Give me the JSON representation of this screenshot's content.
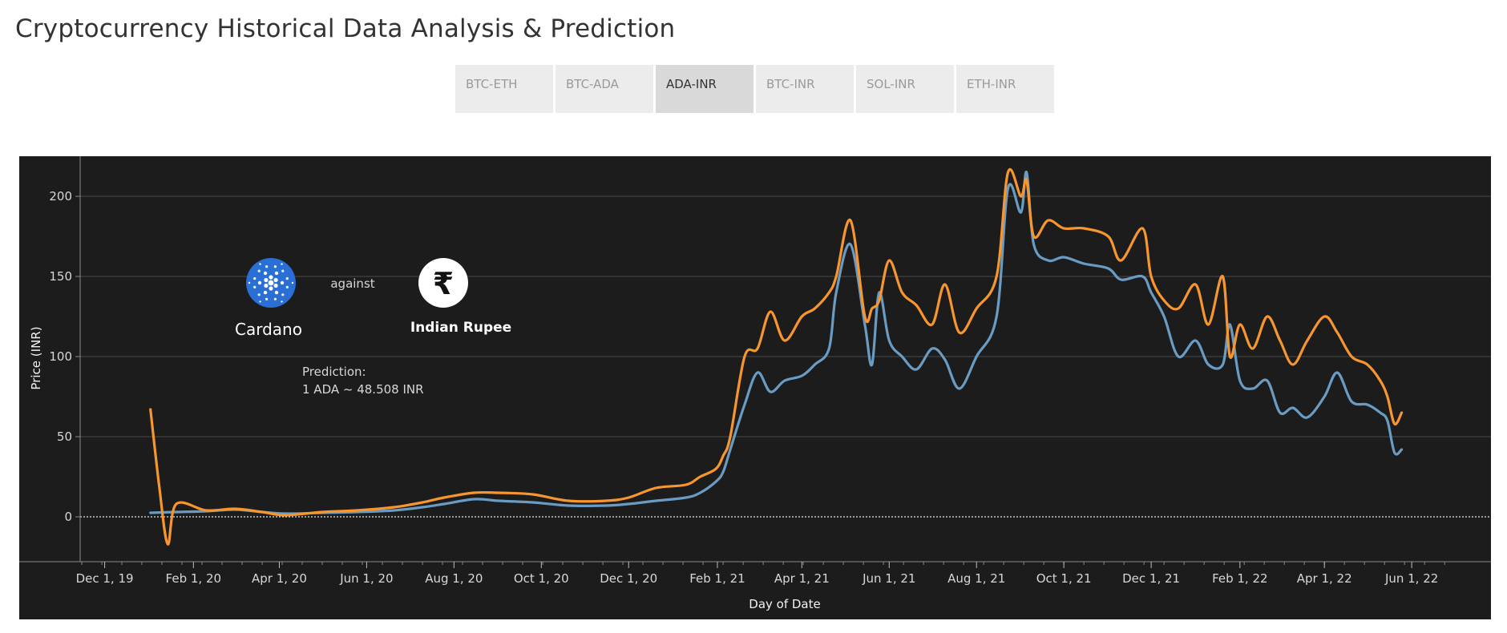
{
  "page": {
    "title": "Cryptocurrency Historical Data Analysis & Prediction"
  },
  "tabs": [
    {
      "label": "BTC-ETH",
      "active": false
    },
    {
      "label": "BTC-ADA",
      "active": false
    },
    {
      "label": "ADA-INR",
      "active": true
    },
    {
      "label": "BTC-INR",
      "active": false
    },
    {
      "label": "SOL-INR",
      "active": false
    },
    {
      "label": "ETH-INR",
      "active": false
    }
  ],
  "legend_area": {
    "coin_name": "Cardano",
    "coin_icon": "cardano-logo-icon",
    "against_text": "against",
    "currency_name": "Indian Rupee",
    "currency_icon": "rupee-icon"
  },
  "prediction": {
    "label": "Prediction:",
    "text": "1 ADA ~ 48.508 INR"
  },
  "colors": {
    "background": "#1c1c1c",
    "actual_series": "#6a9bc3",
    "predicted_series": "#f7962e",
    "coin_blue": "#2a6fd6"
  },
  "chart_data": {
    "type": "line",
    "xlabel": "Day of Date",
    "ylabel": "Price (INR)",
    "x_type": "date",
    "xlim": [
      "2019-11-15",
      "2022-06-25"
    ],
    "ylim": [
      -28,
      225
    ],
    "grid": true,
    "x_ticks": [
      {
        "date": "2019-12-01",
        "label": "Dec 1, 19"
      },
      {
        "date": "2020-02-01",
        "label": "Feb 1, 20"
      },
      {
        "date": "2020-04-01",
        "label": "Apr 1, 20"
      },
      {
        "date": "2020-06-01",
        "label": "Jun 1, 20"
      },
      {
        "date": "2020-08-01",
        "label": "Aug 1, 20"
      },
      {
        "date": "2020-10-01",
        "label": "Oct 1, 20"
      },
      {
        "date": "2020-12-01",
        "label": "Dec 1, 20"
      },
      {
        "date": "2021-02-01",
        "label": "Feb 1, 21"
      },
      {
        "date": "2021-04-01",
        "label": "Apr 1, 21"
      },
      {
        "date": "2021-06-01",
        "label": "Jun 1, 21"
      },
      {
        "date": "2021-08-01",
        "label": "Aug 1, 21"
      },
      {
        "date": "2021-10-01",
        "label": "Oct 1, 21"
      },
      {
        "date": "2021-12-01",
        "label": "Dec 1, 21"
      },
      {
        "date": "2022-02-01",
        "label": "Feb 1, 22"
      },
      {
        "date": "2022-04-01",
        "label": "Apr 1, 22"
      },
      {
        "date": "2022-06-01",
        "label": "Jun 1, 22"
      }
    ],
    "y_ticks": [
      0,
      50,
      100,
      150,
      200
    ],
    "series": [
      {
        "role": "actual",
        "x": [
          "2020-01-02",
          "2020-01-20",
          "2020-02-10",
          "2020-03-01",
          "2020-03-20",
          "2020-04-05",
          "2020-05-01",
          "2020-05-25",
          "2020-06-20",
          "2020-07-10",
          "2020-07-25",
          "2020-08-15",
          "2020-09-01",
          "2020-09-25",
          "2020-10-20",
          "2020-11-15",
          "2020-12-01",
          "2020-12-20",
          "2021-01-10",
          "2021-01-20",
          "2021-01-31",
          "2021-02-05",
          "2021-02-10",
          "2021-02-20",
          "2021-03-01",
          "2021-03-10",
          "2021-03-20",
          "2021-04-01",
          "2021-04-10",
          "2021-04-20",
          "2021-04-25",
          "2021-05-05",
          "2021-05-15",
          "2021-05-20",
          "2021-05-25",
          "2021-06-01",
          "2021-06-10",
          "2021-06-20",
          "2021-07-01",
          "2021-07-10",
          "2021-07-20",
          "2021-08-01",
          "2021-08-15",
          "2021-08-23",
          "2021-09-01",
          "2021-09-05",
          "2021-09-10",
          "2021-09-20",
          "2021-10-01",
          "2021-10-15",
          "2021-11-01",
          "2021-11-10",
          "2021-11-25",
          "2021-12-01",
          "2021-12-10",
          "2021-12-20",
          "2022-01-01",
          "2022-01-10",
          "2022-01-20",
          "2022-01-25",
          "2022-02-01",
          "2022-02-10",
          "2022-02-20",
          "2022-03-01",
          "2022-03-10",
          "2022-03-20",
          "2022-04-01",
          "2022-04-10",
          "2022-04-20",
          "2022-05-01",
          "2022-05-10",
          "2022-05-15",
          "2022-05-20",
          "2022-05-25"
        ],
        "values": [
          2.5,
          3,
          3.5,
          4.5,
          3,
          2,
          2.5,
          3,
          4,
          6,
          8,
          11,
          10,
          9,
          7,
          7,
          8,
          10,
          12,
          15,
          22,
          28,
          42,
          70,
          90,
          78,
          85,
          88,
          95,
          105,
          140,
          170,
          120,
          95,
          140,
          110,
          100,
          92,
          105,
          98,
          80,
          100,
          125,
          205,
          190,
          215,
          170,
          160,
          162,
          158,
          155,
          148,
          150,
          140,
          125,
          100,
          110,
          95,
          95,
          120,
          85,
          80,
          85,
          65,
          68,
          62,
          75,
          90,
          72,
          70,
          65,
          60,
          40,
          42
        ]
      },
      {
        "role": "predicted",
        "x": [
          "2020-01-02",
          "2020-01-08",
          "2020-01-14",
          "2020-01-20",
          "2020-02-10",
          "2020-03-01",
          "2020-03-20",
          "2020-04-05",
          "2020-05-01",
          "2020-05-25",
          "2020-06-20",
          "2020-07-10",
          "2020-07-25",
          "2020-08-15",
          "2020-09-01",
          "2020-09-25",
          "2020-10-20",
          "2020-11-15",
          "2020-12-01",
          "2020-12-20",
          "2021-01-10",
          "2021-01-20",
          "2021-01-31",
          "2021-02-05",
          "2021-02-10",
          "2021-02-20",
          "2021-03-01",
          "2021-03-10",
          "2021-03-20",
          "2021-04-01",
          "2021-04-10",
          "2021-04-20",
          "2021-04-25",
          "2021-05-05",
          "2021-05-15",
          "2021-05-20",
          "2021-05-25",
          "2021-06-01",
          "2021-06-10",
          "2021-06-20",
          "2021-07-01",
          "2021-07-10",
          "2021-07-20",
          "2021-08-01",
          "2021-08-15",
          "2021-08-23",
          "2021-09-01",
          "2021-09-05",
          "2021-09-10",
          "2021-09-20",
          "2021-10-01",
          "2021-10-15",
          "2021-11-01",
          "2021-11-10",
          "2021-11-25",
          "2021-12-01",
          "2021-12-10",
          "2021-12-20",
          "2022-01-01",
          "2022-01-10",
          "2022-01-20",
          "2022-01-25",
          "2022-02-01",
          "2022-02-10",
          "2022-02-20",
          "2022-03-01",
          "2022-03-10",
          "2022-03-20",
          "2022-04-01",
          "2022-04-10",
          "2022-04-20",
          "2022-05-01",
          "2022-05-10",
          "2022-05-15",
          "2022-05-20",
          "2022-05-25"
        ],
        "values": [
          67,
          20,
          -17,
          8,
          4,
          5,
          3,
          1,
          3,
          4,
          6,
          9,
          12,
          15,
          15,
          14,
          10,
          10,
          12,
          18,
          20,
          25,
          30,
          38,
          50,
          100,
          105,
          128,
          110,
          125,
          130,
          140,
          150,
          185,
          125,
          130,
          135,
          160,
          140,
          132,
          120,
          145,
          115,
          130,
          150,
          215,
          200,
          210,
          175,
          185,
          180,
          180,
          175,
          160,
          180,
          150,
          135,
          130,
          145,
          120,
          150,
          100,
          120,
          105,
          125,
          110,
          95,
          110,
          125,
          115,
          100,
          95,
          85,
          75,
          58,
          65
        ]
      }
    ]
  }
}
